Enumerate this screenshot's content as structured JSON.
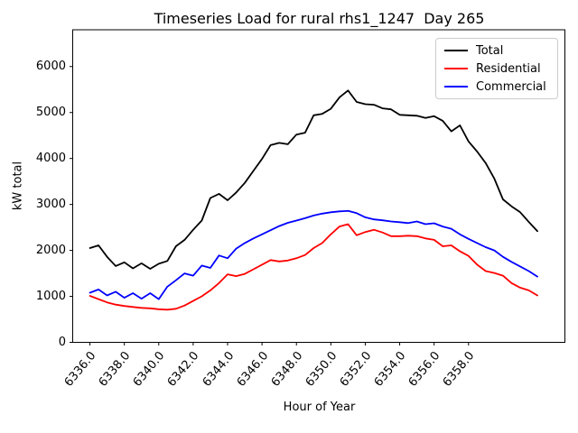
{
  "chart_data": {
    "type": "line",
    "title": "Timeseries Load for rural rhs1_1247  Day 265",
    "xlabel": "Hour of Year",
    "ylabel": "kW total",
    "legend_position": "upper right",
    "grid": false,
    "xlim": [
      6335.0,
      6363.6
    ],
    "ylim": [
      0,
      6800
    ],
    "xticks": [
      6336,
      6338,
      6340,
      6342,
      6344,
      6346,
      6348,
      6350,
      6352,
      6354,
      6356,
      6358
    ],
    "xtick_labels": [
      "6336.0",
      "6338.0",
      "6340.0",
      "6342.0",
      "6344.0",
      "6346.0",
      "6348.0",
      "6350.0",
      "6352.0",
      "6354.0",
      "6356.0",
      "6358.0"
    ],
    "yticks": [
      0,
      1000,
      2000,
      3000,
      4000,
      5000,
      6000
    ],
    "ytick_labels": [
      "0",
      "1000",
      "2000",
      "3000",
      "4000",
      "5000",
      "6000"
    ],
    "x": [
      6336.0,
      6336.5,
      6337.0,
      6337.5,
      6338.0,
      6338.5,
      6339.0,
      6339.5,
      6340.0,
      6340.5,
      6341.0,
      6341.5,
      6342.0,
      6342.5,
      6343.0,
      6343.5,
      6344.0,
      6344.5,
      6345.0,
      6345.5,
      6346.0,
      6346.5,
      6347.0,
      6347.5,
      6348.0,
      6348.5,
      6349.0,
      6349.5,
      6350.0,
      6350.5,
      6351.0,
      6351.5,
      6352.0,
      6352.5,
      6353.0,
      6353.5,
      6354.0,
      6354.5,
      6355.0,
      6355.5,
      6356.0,
      6356.5,
      6357.0,
      6357.5,
      6358.0,
      6358.5,
      6359.0,
      6359.5,
      6360.0,
      6360.5,
      6361.0,
      6361.5,
      6362.0
    ],
    "series": [
      {
        "name": "Total",
        "color": "#000000",
        "values": [
          2050,
          2110,
          1860,
          1660,
          1740,
          1610,
          1720,
          1600,
          1710,
          1770,
          2090,
          2230,
          2450,
          2650,
          3140,
          3230,
          3090,
          3260,
          3470,
          3730,
          3990,
          4290,
          4340,
          4310,
          4520,
          4560,
          4940,
          4970,
          5080,
          5330,
          5480,
          5230,
          5180,
          5170,
          5090,
          5070,
          4950,
          4940,
          4930,
          4880,
          4920,
          4820,
          4590,
          4720,
          4370,
          4150,
          3900,
          3560,
          3110,
          2960,
          2830,
          2620,
          2420
        ]
      },
      {
        "name": "Residential",
        "color": "#ff0000",
        "values": [
          1010,
          940,
          870,
          820,
          790,
          770,
          750,
          740,
          720,
          710,
          730,
          800,
          900,
          1000,
          1130,
          1290,
          1480,
          1440,
          1490,
          1590,
          1690,
          1790,
          1760,
          1780,
          1830,
          1900,
          2050,
          2160,
          2350,
          2520,
          2570,
          2330,
          2400,
          2450,
          2390,
          2310,
          2310,
          2320,
          2310,
          2260,
          2230,
          2090,
          2110,
          1980,
          1880,
          1690,
          1550,
          1510,
          1450,
          1290,
          1190,
          1130,
          1020
        ]
      },
      {
        "name": "Commercial",
        "color": "#0000ff",
        "values": [
          1080,
          1150,
          1020,
          1100,
          970,
          1070,
          950,
          1070,
          940,
          1210,
          1350,
          1500,
          1450,
          1670,
          1620,
          1890,
          1830,
          2040,
          2160,
          2260,
          2350,
          2440,
          2530,
          2600,
          2650,
          2700,
          2760,
          2800,
          2830,
          2850,
          2860,
          2810,
          2720,
          2675,
          2655,
          2630,
          2615,
          2595,
          2630,
          2570,
          2590,
          2520,
          2470,
          2350,
          2250,
          2160,
          2070,
          2000,
          1860,
          1750,
          1650,
          1550,
          1430
        ]
      }
    ]
  }
}
